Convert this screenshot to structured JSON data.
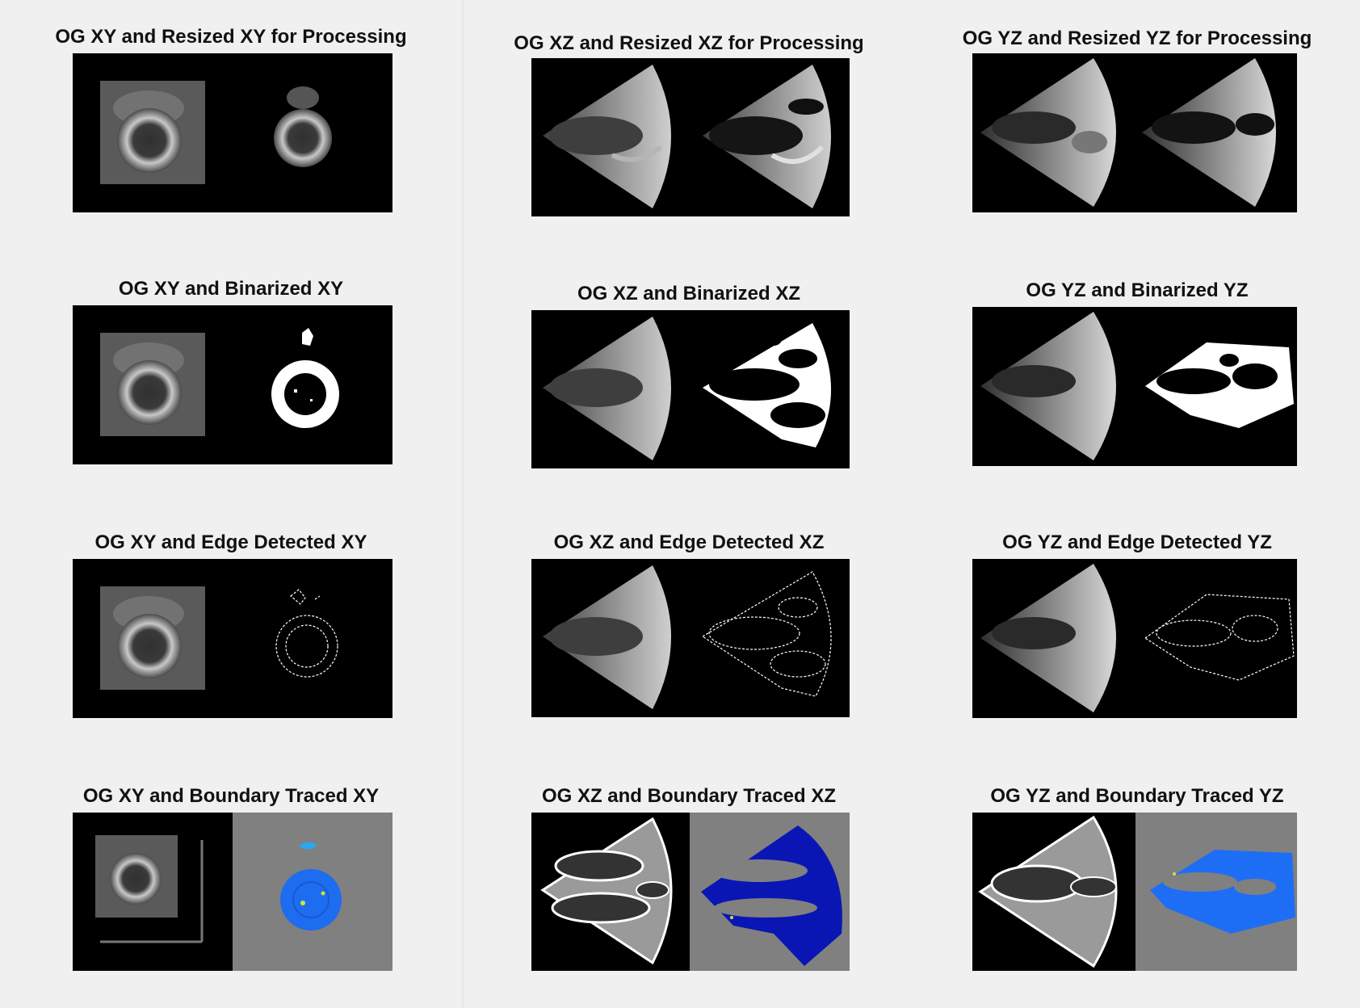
{
  "titles": {
    "xy_resized": "OG XY and Resized XY for Processing",
    "xz_resized": "OG XZ and Resized XZ for Processing",
    "yz_resized": "OG YZ and Resized YZ for Processing",
    "xy_binarized": "OG XY and Binarized XY",
    "xz_binarized": "OG XZ and Binarized XZ",
    "yz_binarized": "OG YZ and Binarized YZ",
    "xy_edge": "OG XY and Edge Detected XY",
    "xz_edge": "OG XZ and Edge Detected XZ",
    "yz_edge": "OG YZ and Edge Detected YZ",
    "xy_boundary": "OG XY and Boundary Traced XY",
    "xz_boundary": "OG XZ and Boundary Traced XZ",
    "yz_boundary": "OG YZ and Boundary Traced YZ"
  },
  "colors": {
    "background": "#f0f0f0",
    "image_bg": "#000000",
    "boundary_bg": "#808080",
    "xy_trace": "#1e6cf0",
    "xy_trace_light": "#2aa7ee",
    "xz_trace": "#0a16b4",
    "yz_trace": "#1e6ef5",
    "highlight": "#c9e83a"
  }
}
